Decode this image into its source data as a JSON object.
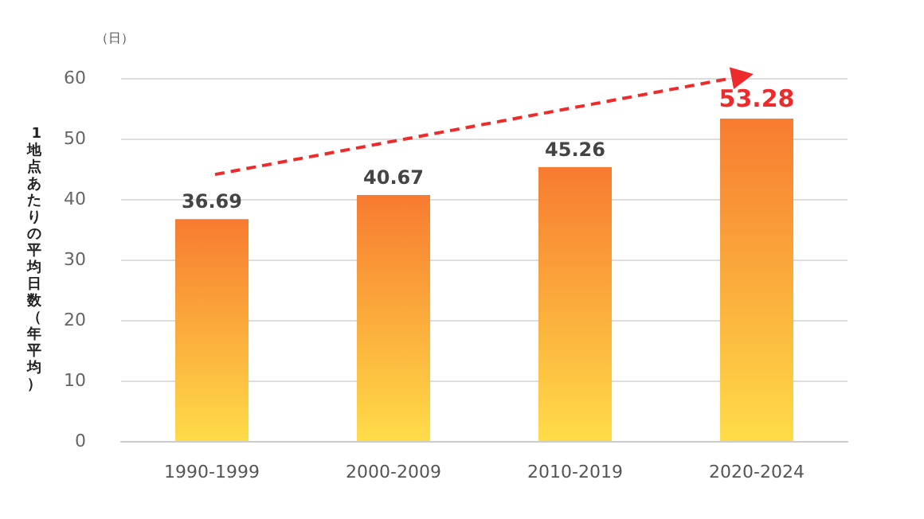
{
  "chart_data": {
    "type": "bar",
    "categories": [
      "1990-1999",
      "2000-2009",
      "2010-2019",
      "2020-2024"
    ],
    "values": [
      36.69,
      40.67,
      45.26,
      53.28
    ],
    "color": "#f77b30",
    "ylabel": "1地点あたりの平均日数（年平均）",
    "annotations": [
      "（日）"
    ],
    "ylim": [
      0,
      60
    ],
    "yticks": [
      0,
      10,
      20,
      30,
      40,
      50,
      60
    ],
    "grid": "y",
    "data_labels": true
  }
}
